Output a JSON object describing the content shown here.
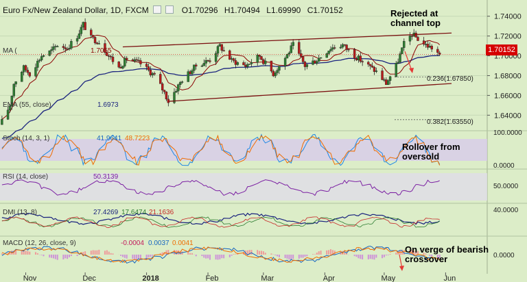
{
  "header": {
    "title": "Euro Fx/New Zealand Dollar, 1D, FXCM",
    "ohlc": [
      {
        "k": "O",
        "v": "1.70296"
      },
      {
        "k": "H",
        "v": "1.70494"
      },
      {
        "k": "L",
        "v": "1.69990"
      },
      {
        "k": "C",
        "v": "1.70152"
      }
    ]
  },
  "annotations": {
    "channel": [
      "Rejected at",
      "channel top"
    ],
    "stoch": [
      "Rollover from",
      "oversold"
    ],
    "macd": [
      "On verge of bearish",
      "crossover"
    ]
  },
  "fib_levels": [
    {
      "label": "0.236(1.67850)",
      "value": 1.6785
    },
    {
      "label": "0.382(1.63550)",
      "value": 1.6355
    }
  ],
  "last_price_tag": "1.70152",
  "ma_line": {
    "label": "MA (",
    "value": "1.7055"
  },
  "ema_line": {
    "label": "EMA (55, close)",
    "value": "1.6973"
  },
  "panels": {
    "stoch": {
      "label": "Stoch (14, 3, 1)",
      "v1": "41.9641",
      "v2": "48.7223",
      "axis": [
        "100.0000",
        "0.0000"
      ]
    },
    "rsi": {
      "label": "RSI (14, close)",
      "v1": "50.3139",
      "axis": [
        "50.0000"
      ]
    },
    "dmi": {
      "label": "DMI (13, 8)",
      "v1": "27.4269",
      "v2": "17.6474",
      "v3": "21.1636",
      "axis": [
        "40.0000"
      ]
    },
    "macd": {
      "label": "MACD (12, 26, close, 9)",
      "v1": "-0.0004",
      "v2": "0.0037",
      "v3": "0.0041",
      "axis": [
        "0.0000"
      ]
    }
  },
  "x_labels": [
    "Nov",
    "Dec",
    "2018",
    "Feb",
    "Mar",
    "Apr",
    "May",
    "Jun"
  ],
  "chart_data": {
    "type": "candlestick",
    "symbol": "EURNZD",
    "timeframe": "1D",
    "y_ticks": [
      1.74,
      1.72,
      1.7,
      1.68,
      1.66,
      1.64
    ],
    "y_range": [
      1.625,
      1.755
    ],
    "anchors": [
      [
        "2017-10-20",
        1.6335
      ],
      [
        "2017-10-24",
        1.65
      ],
      [
        "2017-10-26",
        1.672
      ],
      [
        "2017-10-31",
        1.688
      ],
      [
        "2017-11-03",
        1.682
      ],
      [
        "2017-11-09",
        1.7
      ],
      [
        "2017-11-14",
        1.705
      ],
      [
        "2017-11-17",
        1.711
      ],
      [
        "2017-11-22",
        1.708
      ],
      [
        "2017-11-27",
        1.72
      ],
      [
        "2017-11-30",
        1.732
      ],
      [
        "2017-12-04",
        1.718
      ],
      [
        "2017-12-08",
        1.714
      ],
      [
        "2017-12-13",
        1.7
      ],
      [
        "2017-12-18",
        1.688
      ],
      [
        "2017-12-22",
        1.697
      ],
      [
        "2017-12-29",
        1.692
      ],
      [
        "2018-01-05",
        1.68
      ],
      [
        "2018-01-10",
        1.663
      ],
      [
        "2018-01-12",
        1.654
      ],
      [
        "2018-01-19",
        1.676
      ],
      [
        "2018-01-26",
        1.69
      ],
      [
        "2018-02-02",
        1.696
      ],
      [
        "2018-02-07",
        1.71
      ],
      [
        "2018-02-13",
        1.695
      ],
      [
        "2018-02-20",
        1.69
      ],
      [
        "2018-02-27",
        1.7
      ],
      [
        "2018-03-06",
        1.682
      ],
      [
        "2018-03-12",
        1.698
      ],
      [
        "2018-03-16",
        1.711
      ],
      [
        "2018-03-22",
        1.69
      ],
      [
        "2018-03-28",
        1.696
      ],
      [
        "2018-04-04",
        1.708
      ],
      [
        "2018-04-10",
        1.711
      ],
      [
        "2018-04-16",
        1.7
      ],
      [
        "2018-04-23",
        1.69
      ],
      [
        "2018-04-27",
        1.684
      ],
      [
        "2018-05-02",
        1.672
      ],
      [
        "2018-05-07",
        1.69
      ],
      [
        "2018-05-11",
        1.712
      ],
      [
        "2018-05-15",
        1.722
      ],
      [
        "2018-05-21",
        1.712
      ],
      [
        "2018-05-25",
        1.708
      ],
      [
        "2018-05-29",
        1.7015
      ]
    ],
    "channel_top": [
      [
        "2017-12-20",
        1.709
      ],
      [
        "2018-06-04",
        1.723
      ]
    ],
    "channel_bottom": [
      [
        "2018-01-12",
        1.654
      ],
      [
        "2018-06-04",
        1.672
      ]
    ]
  }
}
